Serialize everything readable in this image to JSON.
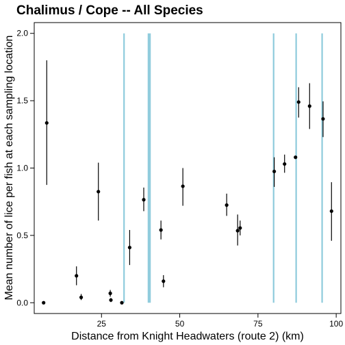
{
  "chart_data": {
    "type": "scatter",
    "title": "Chalimus / Cope -- All Species",
    "xlabel": "Distance from Knight Headwaters (route 2) (km)",
    "ylabel": "Mean number of lice per fish at each sampling location",
    "xlim": [
      3.5,
      101.5
    ],
    "ylim": [
      -0.08,
      2.08
    ],
    "x_ticks": [
      25,
      50,
      75,
      100
    ],
    "y_ticks": [
      0.0,
      0.5,
      1.0,
      1.5,
      2.0
    ],
    "y_tick_labels": [
      "0.0",
      "0.5",
      "1.0",
      "1.5",
      "2.0"
    ],
    "grid": false,
    "colors": {
      "points": "#000000",
      "error_bars": "#000000",
      "reference_lines": "#8ecbdc"
    },
    "reference_lines_x": [
      32.2,
      40.0,
      40.5,
      80.0,
      87.2,
      95.5
    ],
    "points": [
      {
        "x": 6.5,
        "y": 0.0,
        "lo": 0.0,
        "hi": 0.0
      },
      {
        "x": 7.5,
        "y": 1.335,
        "lo": 0.875,
        "hi": 1.8
      },
      {
        "x": 17.0,
        "y": 0.2,
        "lo": 0.13,
        "hi": 0.27
      },
      {
        "x": 18.5,
        "y": 0.04,
        "lo": 0.02,
        "hi": 0.065
      },
      {
        "x": 24.0,
        "y": 0.825,
        "lo": 0.61,
        "hi": 1.04
      },
      {
        "x": 27.8,
        "y": 0.07,
        "lo": 0.045,
        "hi": 0.095
      },
      {
        "x": 28.0,
        "y": 0.02,
        "lo": 0.005,
        "hi": 0.035
      },
      {
        "x": 31.5,
        "y": 0.0,
        "lo": 0.0,
        "hi": 0.0
      },
      {
        "x": 34.0,
        "y": 0.41,
        "lo": 0.28,
        "hi": 0.54
      },
      {
        "x": 38.5,
        "y": 0.765,
        "lo": 0.68,
        "hi": 0.855
      },
      {
        "x": 44.0,
        "y": 0.54,
        "lo": 0.47,
        "hi": 0.61
      },
      {
        "x": 44.8,
        "y": 0.16,
        "lo": 0.115,
        "hi": 0.205
      },
      {
        "x": 51.0,
        "y": 0.865,
        "lo": 0.72,
        "hi": 1.0
      },
      {
        "x": 65.0,
        "y": 0.725,
        "lo": 0.645,
        "hi": 0.81
      },
      {
        "x": 68.5,
        "y": 0.535,
        "lo": 0.425,
        "hi": 0.655
      },
      {
        "x": 69.3,
        "y": 0.555,
        "lo": 0.5,
        "hi": 0.61
      },
      {
        "x": 80.2,
        "y": 0.975,
        "lo": 0.86,
        "hi": 1.08
      },
      {
        "x": 83.5,
        "y": 1.03,
        "lo": 0.965,
        "hi": 1.1
      },
      {
        "x": 87.0,
        "y": 1.08,
        "lo": 1.08,
        "hi": 1.08
      },
      {
        "x": 88.0,
        "y": 1.49,
        "lo": 1.375,
        "hi": 1.6
      },
      {
        "x": 91.5,
        "y": 1.46,
        "lo": 1.29,
        "hi": 1.63
      },
      {
        "x": 95.8,
        "y": 1.365,
        "lo": 1.23,
        "hi": 1.495
      },
      {
        "x": 98.5,
        "y": 0.68,
        "lo": 0.46,
        "hi": 0.895
      }
    ]
  }
}
